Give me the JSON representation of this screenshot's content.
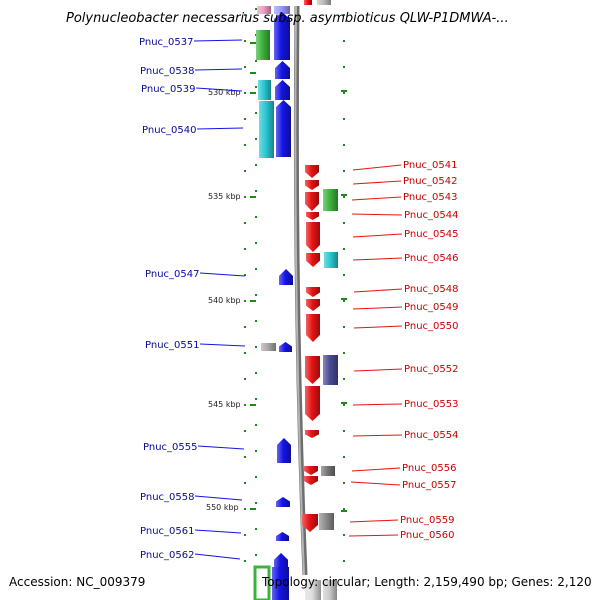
{
  "title": "Polynucleobacter necessarius subsp. asymbioticus QLW-P1DMWA-...",
  "accession": "Accession: NC_009379",
  "topology": "Topology: circular; Length: 2,159,490 bp; Genes: 2,120",
  "colors": {
    "forward_strand": "#1414e6",
    "reverse_strand": "#e61414",
    "backbone": "#888888",
    "forward_label": "#0a0a9a",
    "reverse_label": "#cc0000",
    "tick": "#1e8a1e",
    "cog_green": "#3cb43c",
    "cog_cyan": "#28c8d2",
    "cog_gray": "#8c8c8c",
    "cog_purple": "#4a4a96",
    "cog_pink": "#f0a0c8"
  },
  "kbp_markers": [
    "530 kbp",
    "535 kbp",
    "540 kbp",
    "545 kbp",
    "550 kbp"
  ],
  "genes_forward": [
    "Pnuc_0537",
    "Pnuc_0538",
    "Pnuc_0539",
    "Pnuc_0540",
    "Pnuc_0547",
    "Pnuc_0551",
    "Pnuc_0555",
    "Pnuc_0558",
    "Pnuc_0561",
    "Pnuc_0562"
  ],
  "genes_reverse": [
    "Pnuc_0541",
    "Pnuc_0542",
    "Pnuc_0543",
    "Pnuc_0544",
    "Pnuc_0545",
    "Pnuc_0546",
    "Pnuc_0548",
    "Pnuc_0549",
    "Pnuc_0550",
    "Pnuc_0552",
    "Pnuc_0553",
    "Pnuc_0554",
    "Pnuc_0556",
    "Pnuc_0557",
    "Pnuc_0559",
    "Pnuc_0560"
  ]
}
